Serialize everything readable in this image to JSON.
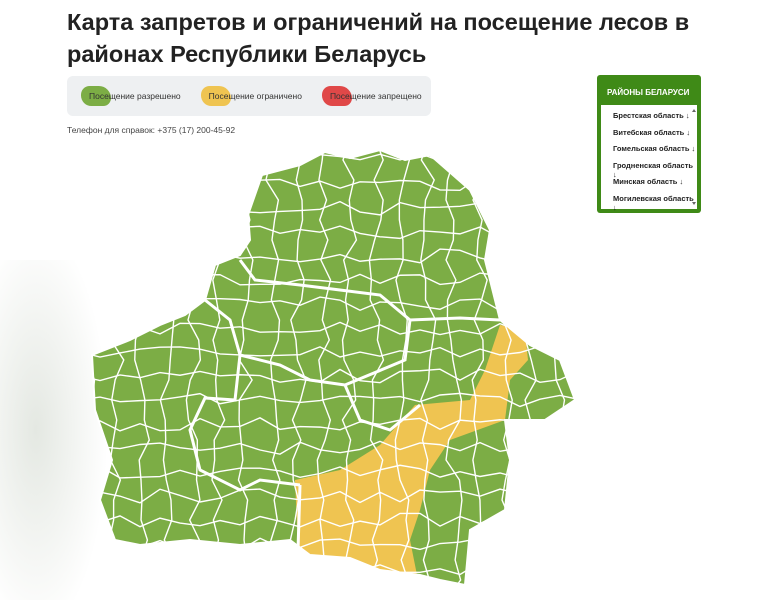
{
  "header": {
    "title": "Карта запретов и ограничений на посещение лесов в районах Республики Беларусь"
  },
  "legend": {
    "items": [
      {
        "label": "Посещение разрешено",
        "color": "#7cad45"
      },
      {
        "label": "Посещение ограничено",
        "color": "#efc451"
      },
      {
        "label": "Посещение запрещено",
        "color": "#e04848"
      }
    ]
  },
  "phone": "Телефон для справок: +375 (17) 200-45-92",
  "regions_panel": {
    "title": "РАЙОНЫ БЕЛАРУСИ",
    "items": [
      "Брестская область ↓",
      "Витебская область ↓",
      "Гомельская область ↓",
      "Гродненская область ↓",
      "Минская область ↓",
      "Могилевская область ↓"
    ]
  }
}
